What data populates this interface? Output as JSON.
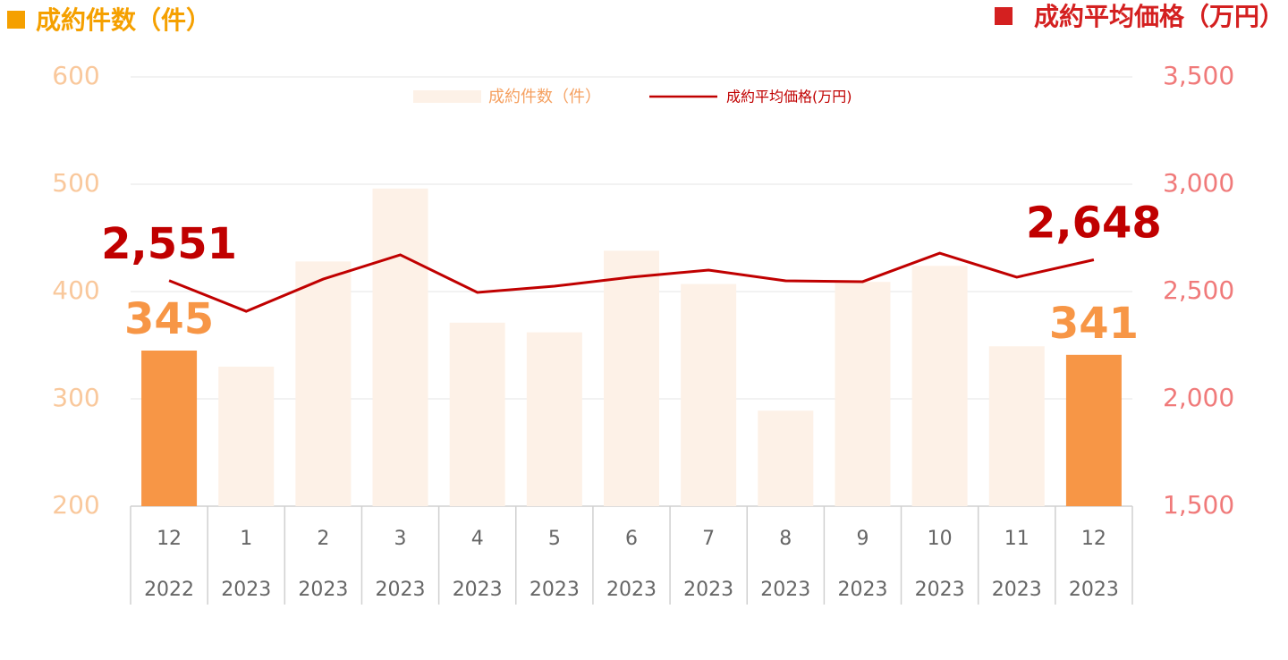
{
  "chart_data": {
    "type": "bar_line",
    "y_title": "成約件数（件）",
    "y2_title": "成約平均価格（万円）",
    "categories": [
      "12",
      "1",
      "2",
      "3",
      "4",
      "5",
      "6",
      "7",
      "8",
      "9",
      "10",
      "11",
      "12"
    ],
    "category_years": [
      "2022",
      "2023",
      "2023",
      "2023",
      "2023",
      "2023",
      "2023",
      "2023",
      "2023",
      "2023",
      "2023",
      "2023",
      "2023"
    ],
    "series": [
      {
        "name": "成約件数（件）",
        "type": "bar",
        "color": "#fdf1e7",
        "highlight_color": "#f79646",
        "highlight": [
          true,
          false,
          false,
          false,
          false,
          false,
          false,
          false,
          false,
          false,
          false,
          false,
          true
        ],
        "values": [
          345,
          330,
          428,
          496,
          371,
          362,
          438,
          407,
          289,
          409,
          424,
          349,
          341
        ],
        "value_labels": [
          "345",
          null,
          null,
          null,
          null,
          null,
          null,
          null,
          null,
          null,
          null,
          null,
          "341"
        ]
      },
      {
        "name": "成約平均価格(万円)",
        "type": "line",
        "axis": "y2",
        "color": "#c00000",
        "values": [
          2551,
          2408,
          2558,
          2671,
          2496,
          2525,
          2567,
          2600,
          2550,
          2546,
          2679,
          2567,
          2648
        ],
        "value_labels": [
          "2,551",
          null,
          null,
          null,
          null,
          null,
          null,
          null,
          null,
          null,
          null,
          null,
          "2,648"
        ]
      }
    ],
    "ylim": [
      200,
      600
    ],
    "yticks": [
      200,
      300,
      400,
      500,
      600
    ],
    "y2lim": [
      1500,
      3500
    ],
    "y2ticks": [
      {
        "value": 1500,
        "label": "1,500"
      },
      {
        "value": 2000,
        "label": "2,000"
      },
      {
        "value": 2500,
        "label": "2,500"
      },
      {
        "value": 3000,
        "label": "3,000"
      },
      {
        "value": 3500,
        "label": "3,500"
      }
    ],
    "grid": true
  }
}
